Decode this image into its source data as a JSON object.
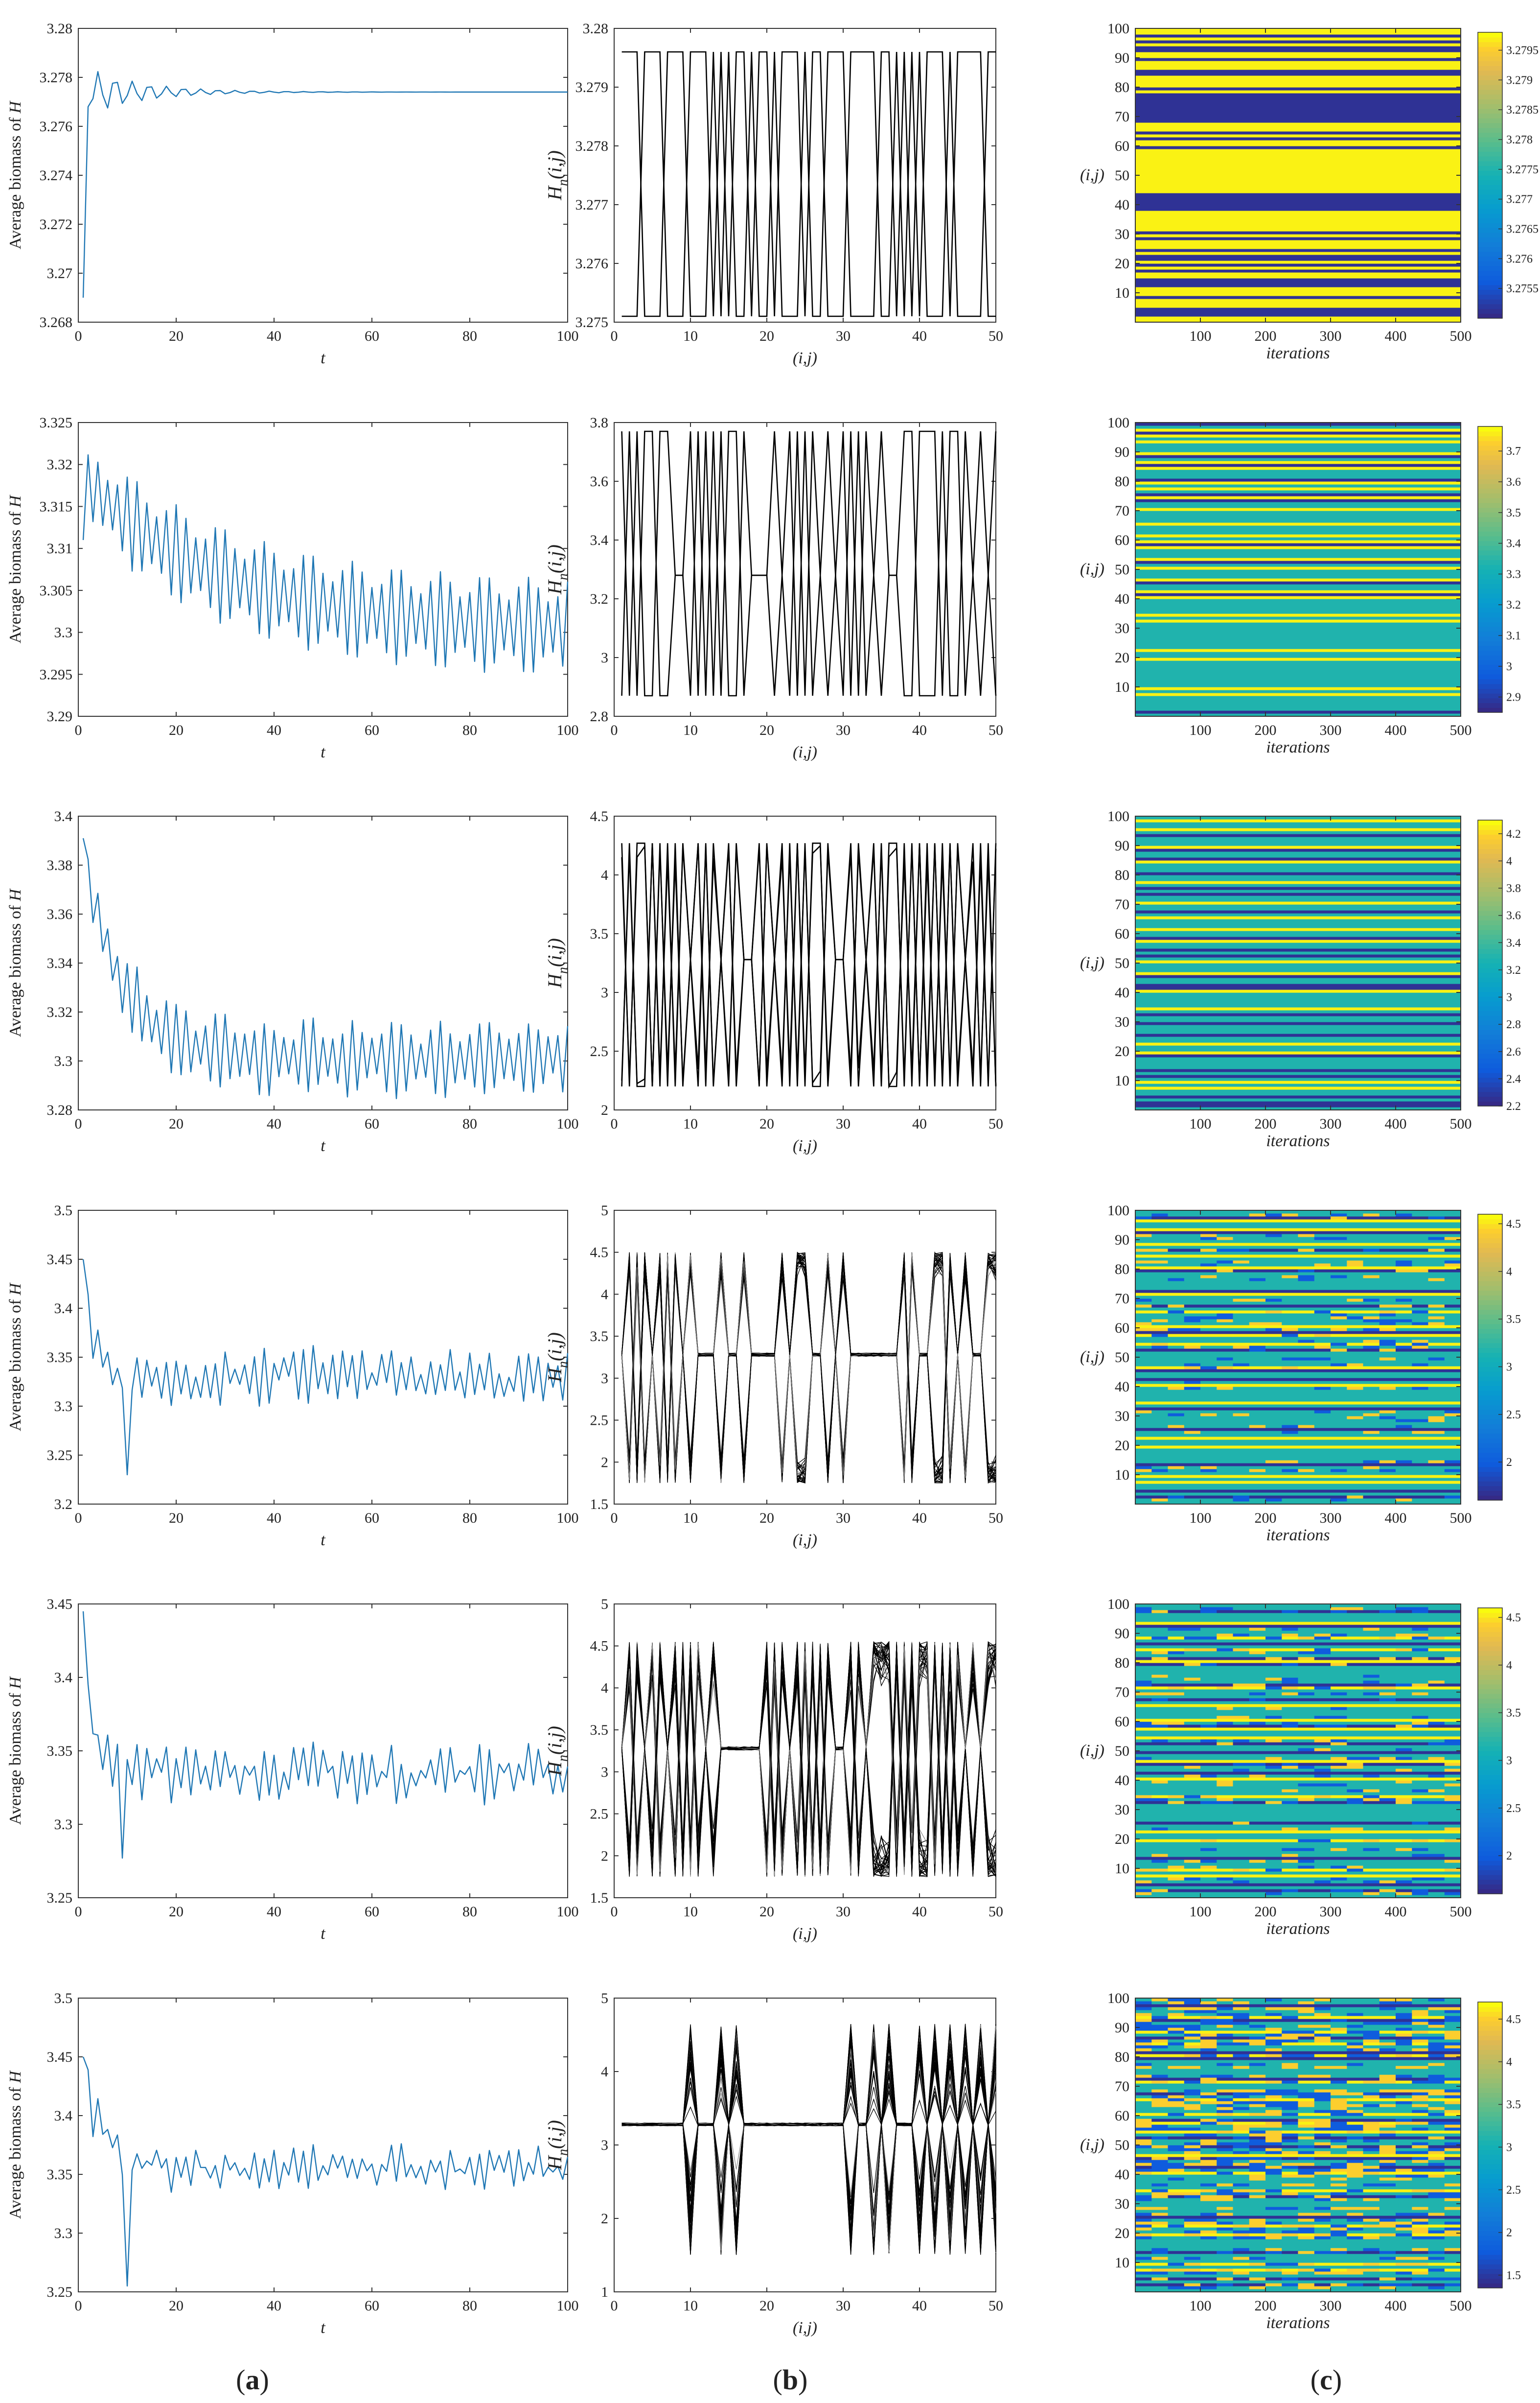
{
  "figure": {
    "panel_labels": [
      {
        "open": "(",
        "letter": "a",
        "close": ")"
      },
      {
        "open": "(",
        "letter": "b",
        "close": ")"
      },
      {
        "open": "(",
        "letter": "c",
        "close": ")"
      }
    ]
  },
  "colors": {
    "series_a": "#1f77b4",
    "series_b": "#000000",
    "axes": "#333333",
    "parula_low": "#352a87",
    "parula_mid": "#21b1a4",
    "parula_high": "#f9fb0e"
  },
  "chart_data": [
    {
      "type": "line",
      "row": 1,
      "panel": "a",
      "title": "",
      "xlabel": "t",
      "ylabel": "Average biomass of H",
      "xlim": [
        0,
        100
      ],
      "ylim": [
        3.268,
        3.28
      ],
      "xticks": [
        0,
        20,
        40,
        60,
        80,
        100
      ],
      "yticks": [
        3.268,
        3.27,
        3.272,
        3.274,
        3.276,
        3.278,
        3.28
      ],
      "yticklabels": [
        "3.268",
        "3.27",
        "3.272",
        "3.274",
        "3.276",
        "3.278",
        "3.28"
      ],
      "series": [
        {
          "name": "average biomass",
          "kind": "damped",
          "start": 3.269,
          "mean": 3.2774,
          "amplitude": 0.0012,
          "amp_end": 0.0,
          "decay": 0.09,
          "period": 3.5,
          "noise": 0.0
        }
      ]
    },
    {
      "type": "line",
      "row": 1,
      "panel": "b",
      "xlabel": "(i,j)",
      "ylabel_main": "H",
      "ylabel_sub": "n",
      "ylabel_args": "(i,j)",
      "xlim": [
        0,
        50
      ],
      "ylim": [
        3.275,
        3.28
      ],
      "xticks": [
        0,
        10,
        20,
        30,
        40,
        50
      ],
      "yticks": [
        3.275,
        3.276,
        3.277,
        3.278,
        3.279,
        3.28
      ],
      "yticklabels": [
        "3.275",
        "3.276",
        "3.277",
        "3.278",
        "3.279",
        "3.28"
      ],
      "levels": [
        3.2751,
        3.2796
      ],
      "tracks": 2,
      "flat_level": null,
      "spread": 0.0,
      "pattern": "0000111000111010110110111011000111100101011101111001"
    },
    {
      "type": "heatmap",
      "row": 1,
      "panel": "c",
      "xlabel": "iterations",
      "ylabel": "(i,j)",
      "xlim": [
        0,
        500
      ],
      "ylim": [
        0,
        100
      ],
      "xticks": [
        100,
        200,
        300,
        400,
        500
      ],
      "yticks": [
        10,
        20,
        30,
        40,
        50,
        60,
        70,
        80,
        90,
        100
      ],
      "colorbar": {
        "min": 3.275,
        "max": 3.2798,
        "ticks": [
          3.2755,
          3.276,
          3.2765,
          3.277,
          3.2775,
          3.278,
          3.2785,
          3.279,
          3.2795
        ],
        "ticklabels": [
          "3.2755",
          "3.276",
          "3.2765",
          "3.277",
          "3.2775",
          "3.278",
          "3.2785",
          "3.279",
          "3.2795"
        ]
      },
      "rows_pattern": "1101010011011100111101000000000011101011011111111111111100000011111110101110100101011000111011100011"
    },
    {
      "type": "line",
      "row": 2,
      "panel": "a",
      "xlabel": "t",
      "ylabel": "Average biomass of H",
      "xlim": [
        0,
        100
      ],
      "ylim": [
        3.29,
        3.325
      ],
      "xticks": [
        0,
        20,
        40,
        60,
        80,
        100
      ],
      "yticks": [
        3.29,
        3.295,
        3.3,
        3.305,
        3.31,
        3.315,
        3.32,
        3.325
      ],
      "yticklabels": [
        "3.29",
        "3.295",
        "3.3",
        "3.305",
        "3.31",
        "3.315",
        "3.32",
        "3.325"
      ],
      "series": [
        {
          "name": "average biomass",
          "kind": "drift",
          "start": 3.311,
          "mean_start": 3.319,
          "mean_end": 3.3,
          "drift_rate": 0.035,
          "amplitude": 0.0015,
          "amp_end": 0.0058,
          "period": 2.0,
          "noise": 0.0
        }
      ]
    },
    {
      "type": "line",
      "row": 2,
      "panel": "b",
      "xlabel": "(i,j)",
      "ylabel_main": "H",
      "ylabel_sub": "n",
      "ylabel_args": "(i,j)",
      "xlim": [
        0,
        50
      ],
      "ylim": [
        2.8,
        3.8
      ],
      "xticks": [
        0,
        10,
        20,
        30,
        40,
        50
      ],
      "yticks": [
        2.8,
        3.0,
        3.2,
        3.4,
        3.6,
        3.8
      ],
      "yticklabels": [
        "2.8",
        "3",
        "3.2",
        "3.4",
        "3.6",
        "3.8"
      ],
      "levels": [
        2.87,
        3.77
      ],
      "tracks": 2,
      "flat_level": 3.28,
      "spread": 0.0,
      "pattern": "1101001122010101102220210102021010202200111011020212"
    },
    {
      "type": "heatmap",
      "row": 2,
      "panel": "c",
      "xlabel": "iterations",
      "ylabel": "(i,j)",
      "xlim": [
        0,
        500
      ],
      "ylim": [
        0,
        100
      ],
      "xticks": [
        100,
        200,
        300,
        400,
        500
      ],
      "yticks": [
        10,
        20,
        30,
        40,
        50,
        60,
        70,
        80,
        90,
        100
      ],
      "colorbar": {
        "min": 2.85,
        "max": 3.78,
        "ticks": [
          2.9,
          3.0,
          3.1,
          3.2,
          3.3,
          3.4,
          3.5,
          3.6,
          3.7
        ],
        "ticklabels": [
          "2.9",
          "3",
          "3.1",
          "3.2",
          "3.3",
          "3.4",
          "3.5",
          "3.6",
          "3.7"
        ]
      },
      "rows_pattern": "0210121222102101222012120102212222122212101222102122210221012222212122222222212212222222221212222202"
    },
    {
      "type": "line",
      "row": 3,
      "panel": "a",
      "xlabel": "t",
      "ylabel": "Average biomass of H",
      "xlim": [
        0,
        100
      ],
      "ylim": [
        3.28,
        3.4
      ],
      "xticks": [
        0,
        20,
        40,
        60,
        80,
        100
      ],
      "yticks": [
        3.28,
        3.3,
        3.32,
        3.34,
        3.36,
        3.38,
        3.4
      ],
      "yticklabels": [
        "3.28",
        "3.3",
        "3.32",
        "3.34",
        "3.36",
        "3.38",
        "3.4"
      ],
      "series": [
        {
          "name": "average biomass",
          "kind": "drift",
          "start": 3.391,
          "mean_start": 3.392,
          "mean_end": 3.301,
          "drift_rate": 0.12,
          "amplitude": 0.003,
          "amp_end": 0.015,
          "period": 2.0,
          "noise": 0.002
        }
      ]
    },
    {
      "type": "line",
      "row": 3,
      "panel": "b",
      "xlabel": "(i,j)",
      "ylabel_main": "H",
      "ylabel_sub": "n",
      "ylabel_args": "(i,j)",
      "xlim": [
        0,
        50
      ],
      "ylim": [
        2.0,
        4.5
      ],
      "xticks": [
        0,
        10,
        20,
        30,
        40,
        50
      ],
      "yticks": [
        2.0,
        2.5,
        3.0,
        3.5,
        4.0,
        4.5
      ],
      "yticklabels": [
        "2",
        "2.5",
        "3",
        "3.5",
        "4",
        "4.5"
      ],
      "levels": [
        2.2,
        4.27
      ],
      "tracks": 4,
      "flat_level": 3.28,
      "spread": 0.45,
      "pattern": "2101101010201021022012101011022102101101010101210101"
    },
    {
      "type": "heatmap",
      "row": 3,
      "panel": "c",
      "xlabel": "iterations",
      "ylabel": "(i,j)",
      "xlim": [
        0,
        500
      ],
      "ylim": [
        0,
        100
      ],
      "xticks": [
        100,
        200,
        300,
        400,
        500
      ],
      "yticks": [
        10,
        20,
        30,
        40,
        50,
        60,
        70,
        80,
        90,
        100
      ],
      "colorbar": {
        "min": 2.2,
        "max": 4.3,
        "ticks": [
          2.2,
          2.4,
          2.6,
          2.8,
          3.0,
          3.2,
          3.4,
          3.6,
          3.8,
          4.0,
          4.2
        ],
        "ticklabels": [
          "2.2",
          "2.4",
          "2.6",
          "2.8",
          "3",
          "3.2",
          "3.4",
          "3.6",
          "3.8",
          "4",
          "4.2"
        ]
      },
      "rows_pattern": "2122120222102201222022120202212202122212201220202122210220012222212022022202212210222202021212202002"
    },
    {
      "type": "line",
      "row": 4,
      "panel": "a",
      "xlabel": "t",
      "ylabel": "Average biomass of H",
      "xlim": [
        0,
        100
      ],
      "ylim": [
        3.2,
        3.5
      ],
      "xticks": [
        0,
        20,
        40,
        60,
        80,
        100
      ],
      "yticks": [
        3.2,
        3.25,
        3.3,
        3.35,
        3.4,
        3.45,
        3.5
      ],
      "yticklabels": [
        "3.2",
        "3.25",
        "3.3",
        "3.35",
        "3.4",
        "3.45",
        "3.5"
      ],
      "series": [
        {
          "name": "average biomass",
          "kind": "drift",
          "start": 3.45,
          "mean_start": 3.45,
          "mean_end": 3.33,
          "drift_rate": 0.35,
          "amplitude": 0.02,
          "amp_end": 0.022,
          "period": 2.0,
          "noise": 0.012,
          "dip_at": 10,
          "dip_value": 3.23
        }
      ]
    },
    {
      "type": "line",
      "row": 4,
      "panel": "b",
      "xlabel": "(i,j)",
      "ylabel_main": "H",
      "ylabel_sub": "n",
      "ylabel_args": "(i,j)",
      "xlim": [
        0,
        50
      ],
      "ylim": [
        1.5,
        5.0
      ],
      "xticks": [
        0,
        10,
        20,
        30,
        40,
        50
      ],
      "yticks": [
        1.5,
        2.0,
        2.5,
        3.0,
        3.5,
        4.0,
        4.5,
        5.0
      ],
      "yticklabels": [
        "1.5",
        "2",
        "2.5",
        "3",
        "3.5",
        "4",
        "4.5",
        "5"
      ],
      "levels": [
        1.75,
        4.5
      ],
      "tracks": 60,
      "flat_level": 3.28,
      "spread": 0.35,
      "pattern": "2201020102122212212222020022120222222201221102022112"
    },
    {
      "type": "heatmap",
      "row": 4,
      "panel": "c",
      "xlabel": "iterations",
      "ylabel": "(i,j)",
      "xlim": [
        0,
        500
      ],
      "ylim": [
        0,
        100
      ],
      "xticks": [
        100,
        200,
        300,
        400,
        500
      ],
      "yticks": [
        10,
        20,
        30,
        40,
        50,
        60,
        70,
        80,
        90,
        100
      ],
      "noise": 0.25,
      "colorbar": {
        "min": 1.6,
        "max": 4.6,
        "ticks": [
          2.0,
          2.5,
          3.0,
          3.5,
          4.0,
          4.5
        ],
        "ticklabels": [
          "2",
          "2.5",
          "3",
          "3.5",
          "4",
          "4.5"
        ]
      },
      "rows_pattern": "2201221022212021222102222220122202122221201221202222210220212222212022222202212212222202221212202022"
    },
    {
      "type": "line",
      "row": 5,
      "panel": "a",
      "xlabel": "t",
      "ylabel": "Average biomass of H",
      "xlim": [
        0,
        100
      ],
      "ylim": [
        3.25,
        3.45
      ],
      "xticks": [
        0,
        20,
        40,
        60,
        80,
        100
      ],
      "yticks": [
        3.25,
        3.3,
        3.35,
        3.4,
        3.45
      ],
      "yticklabels": [
        "3.25",
        "3.3",
        "3.35",
        "3.4",
        "3.45"
      ],
      "series": [
        {
          "name": "average biomass",
          "kind": "drift",
          "start": 3.445,
          "mean_start": 3.445,
          "mean_end": 3.335,
          "drift_rate": 0.4,
          "amplitude": 0.01,
          "amp_end": 0.014,
          "period": 2.2,
          "noise": 0.009,
          "dip_at": 9,
          "dip_value": 3.277
        }
      ]
    },
    {
      "type": "line",
      "row": 5,
      "panel": "b",
      "xlabel": "(i,j)",
      "ylabel_main": "H",
      "ylabel_sub": "n",
      "ylabel_args": "(i,j)",
      "xlim": [
        0,
        50
      ],
      "ylim": [
        1.5,
        5.0
      ],
      "xticks": [
        0,
        10,
        20,
        30,
        40,
        50
      ],
      "yticks": [
        1.5,
        2.0,
        2.5,
        3.0,
        3.5,
        4.0,
        4.5,
        5.0
      ],
      "yticklabels": [
        "1.5",
        "2",
        "2.5",
        "3",
        "3.5",
        "4",
        "4.5",
        "5"
      ],
      "levels": [
        1.75,
        4.55
      ],
      "tracks": 60,
      "flat_level": 3.28,
      "spread": 0.6,
      "pattern": "1210210201012122222201020101022012111010110101212112"
    },
    {
      "type": "heatmap",
      "row": 5,
      "panel": "c",
      "xlabel": "iterations",
      "ylabel": "(i,j)",
      "xlim": [
        0,
        500
      ],
      "ylim": [
        0,
        100
      ],
      "xticks": [
        100,
        200,
        300,
        400,
        500
      ],
      "yticks": [
        10,
        20,
        30,
        40,
        50,
        60,
        70,
        80,
        90,
        100
      ],
      "noise": 0.3,
      "colorbar": {
        "min": 1.6,
        "max": 4.6,
        "ticks": [
          2.0,
          2.5,
          3.0,
          3.5,
          4.0,
          4.5
        ],
        "ticklabels": [
          "2",
          "2.5",
          "3",
          "3.5",
          "4",
          "4.5"
        ]
      },
      "rows_pattern": "2202221022212021220102222220122202122221201221202202210220212222212022222202212212222202221212202022"
    },
    {
      "type": "line",
      "row": 6,
      "panel": "a",
      "xlabel": "t",
      "ylabel": "Average biomass of H",
      "xlim": [
        0,
        100
      ],
      "ylim": [
        3.25,
        3.5
      ],
      "xticks": [
        0,
        20,
        40,
        60,
        80,
        100
      ],
      "yticks": [
        3.25,
        3.3,
        3.35,
        3.4,
        3.45,
        3.5
      ],
      "yticklabels": [
        "3.25",
        "3.3",
        "3.35",
        "3.4",
        "3.45",
        "3.5"
      ],
      "series": [
        {
          "name": "average biomass",
          "kind": "drift",
          "start": 3.45,
          "mean_start": 3.465,
          "mean_end": 3.355,
          "drift_rate": 0.25,
          "amplitude": 0.03,
          "amp_end": 0.013,
          "period": 2.4,
          "noise": 0.01,
          "dip_at": 10,
          "dip_value": 3.255
        }
      ]
    },
    {
      "type": "line",
      "row": 6,
      "panel": "b",
      "xlabel": "(i,j)",
      "ylabel_main": "H",
      "ylabel_sub": "n",
      "ylabel_args": "(i,j)",
      "xlim": [
        0,
        50
      ],
      "ylim": [
        1.0,
        5.0
      ],
      "xticks": [
        0,
        10,
        20,
        30,
        40,
        50
      ],
      "yticks": [
        1.0,
        2.0,
        3.0,
        4.0,
        5.0
      ],
      "yticklabels": [
        "1",
        "2",
        "3",
        "4",
        "5"
      ],
      "levels": [
        1.5,
        4.65
      ],
      "tracks": 70,
      "flat_level": 3.28,
      "spread": 1.2,
      "pattern": "2222222222122212122222222222222122121222121212121212"
    },
    {
      "type": "heatmap",
      "row": 6,
      "panel": "c",
      "xlabel": "iterations",
      "ylabel": "(i,j)",
      "xlim": [
        0,
        500
      ],
      "ylim": [
        0,
        100
      ],
      "xticks": [
        100,
        200,
        300,
        400,
        500
      ],
      "yticks": [
        10,
        20,
        30,
        40,
        50,
        60,
        70,
        80,
        90,
        100
      ],
      "noise": 0.45,
      "colorbar": {
        "min": 1.35,
        "max": 4.7,
        "ticks": [
          1.5,
          2.0,
          2.5,
          3.0,
          3.5,
          4.0,
          4.5
        ],
        "ticklabels": [
          "1.5",
          "2",
          "2.5",
          "3",
          "3.5",
          "4",
          "4.5"
        ]
      },
      "rows_pattern": "2202221022212021220102222220122202122221201221202202210220212222212022222202212212222202221212202022"
    }
  ]
}
